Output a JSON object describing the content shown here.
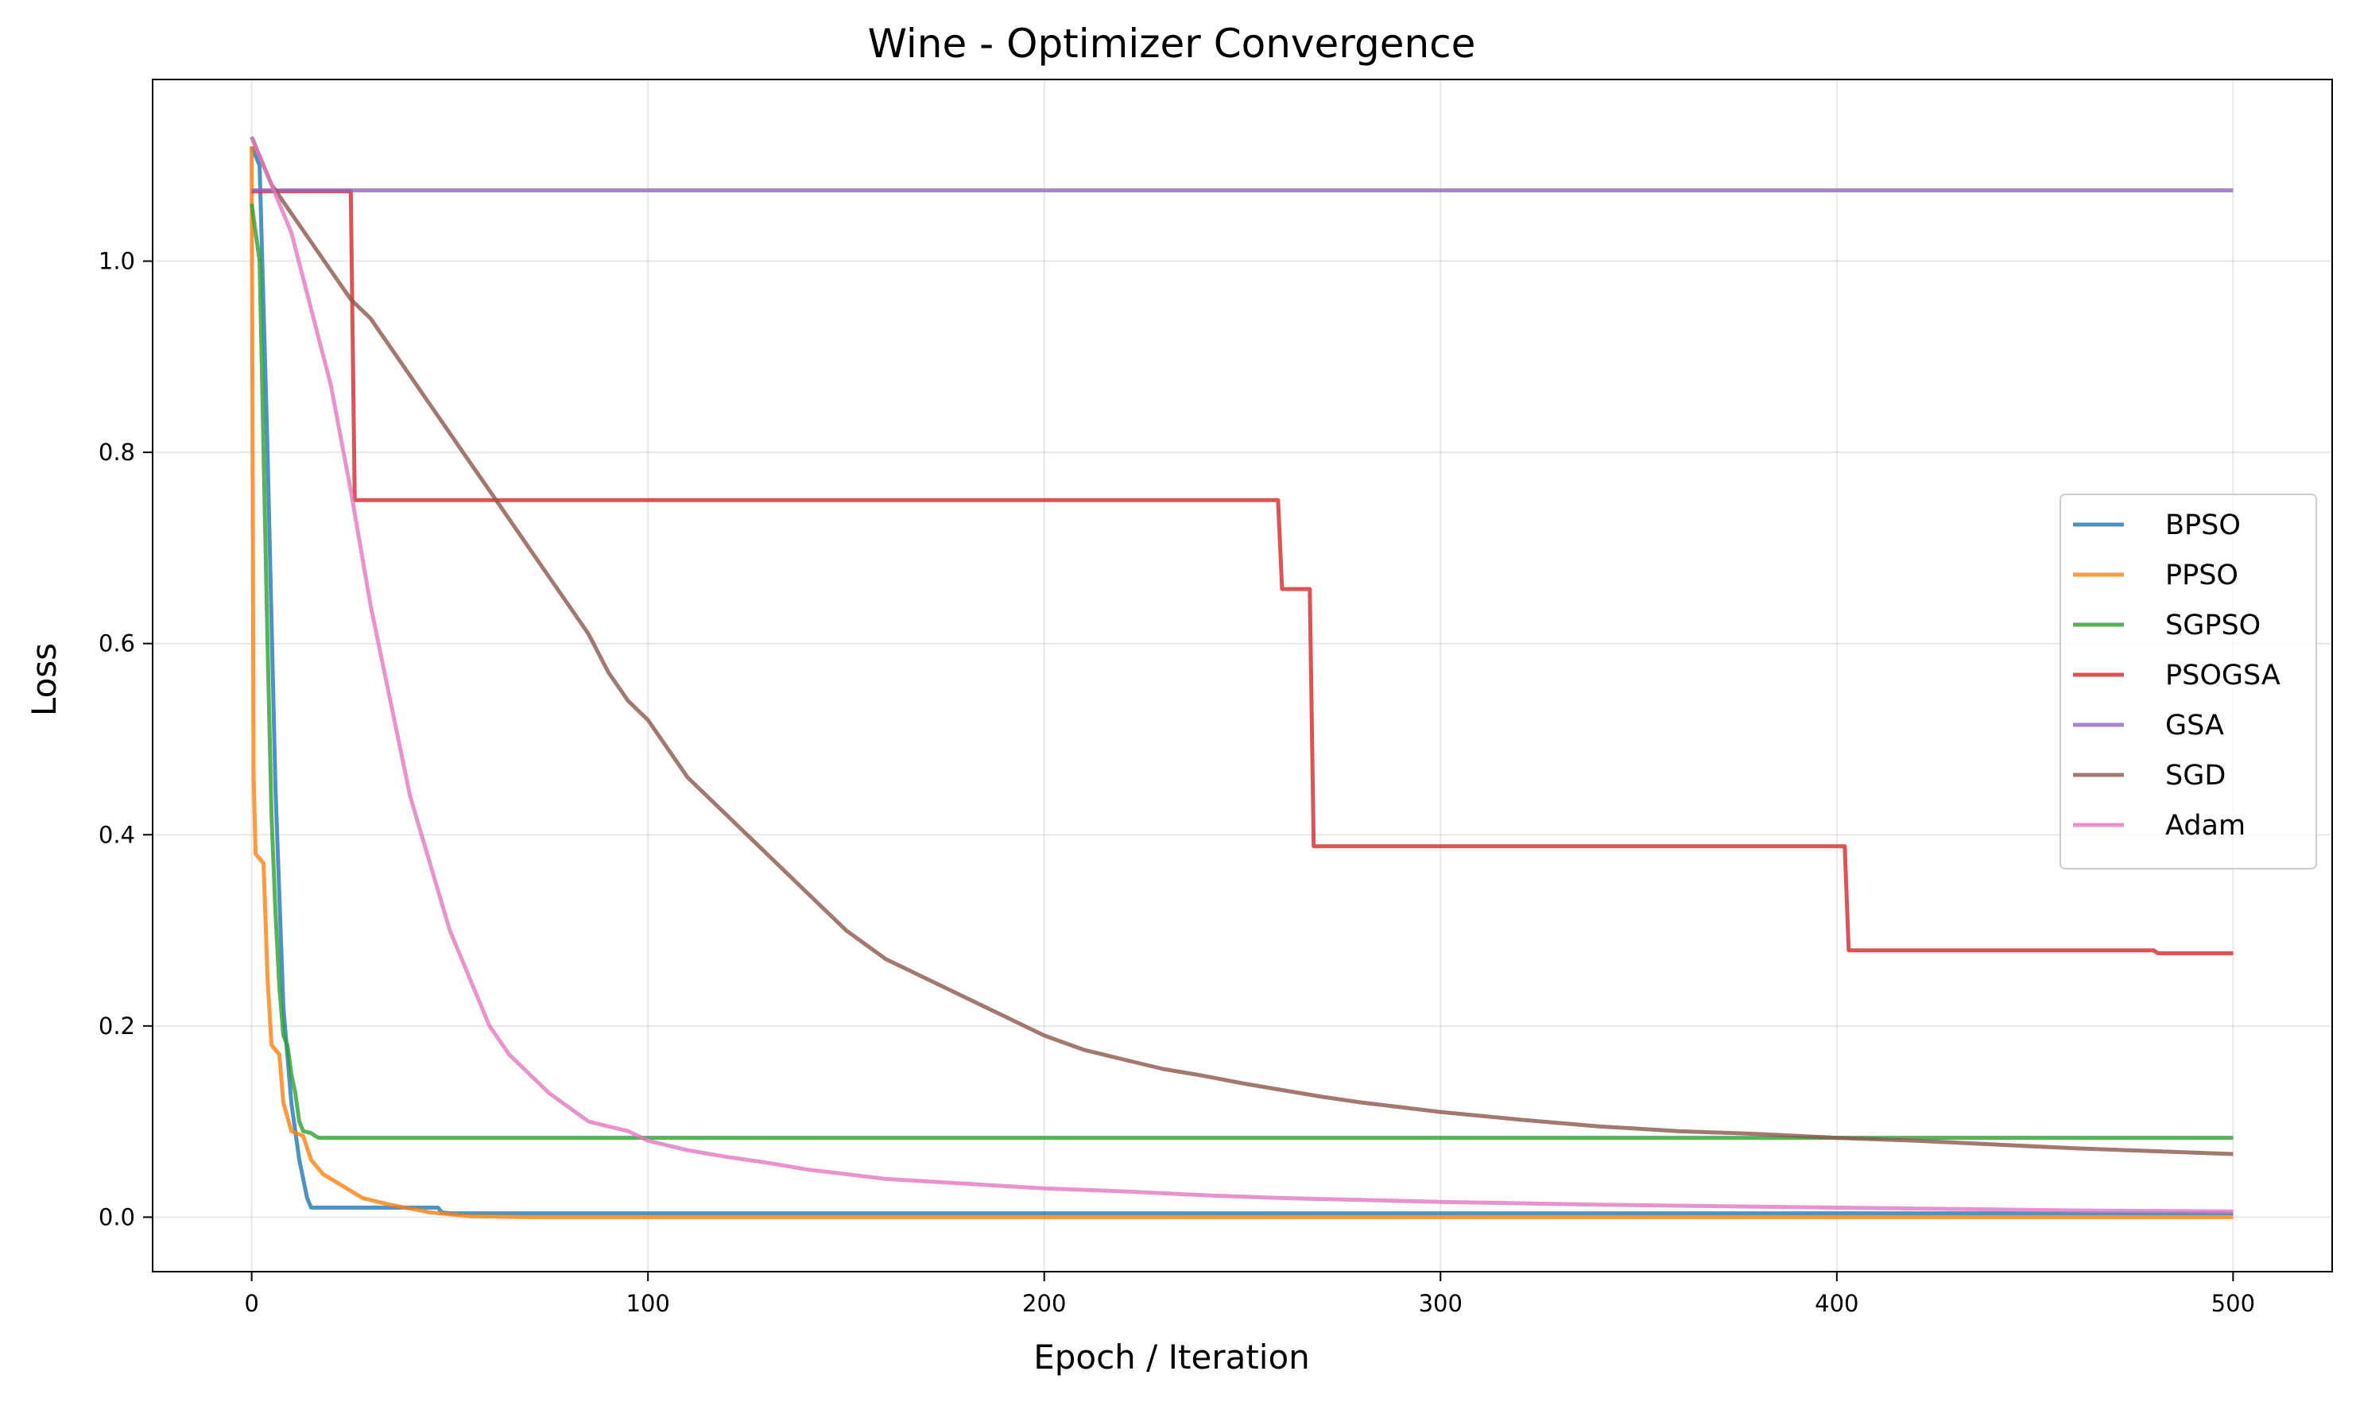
{
  "chart_data": {
    "type": "line",
    "title": "Wine - Optimizer Convergence",
    "xlabel": "Epoch / Iteration",
    "ylabel": "Loss",
    "xlim": [
      -25,
      525
    ],
    "ylim": [
      -0.057,
      1.19
    ],
    "xticks": [
      0,
      100,
      200,
      300,
      400,
      500
    ],
    "yticks": [
      0.0,
      0.2,
      0.4,
      0.6,
      0.8,
      1.0
    ],
    "ytick_labels": [
      "0.0",
      "0.2",
      "0.4",
      "0.6",
      "0.8",
      "1.0"
    ],
    "grid": true,
    "legend_position": "center-right",
    "series": [
      {
        "name": "BPSO",
        "color": "#1f77b4",
        "points": [
          [
            0,
            1.12
          ],
          [
            2,
            1.1
          ],
          [
            4,
            0.8
          ],
          [
            6,
            0.45
          ],
          [
            8,
            0.22
          ],
          [
            10,
            0.12
          ],
          [
            12,
            0.06
          ],
          [
            14,
            0.02
          ],
          [
            15,
            0.01
          ],
          [
            47,
            0.01
          ],
          [
            48,
            0.005
          ],
          [
            50,
            0.004
          ],
          [
            500,
            0.004
          ]
        ]
      },
      {
        "name": "PPSO",
        "color": "#ff7f0e",
        "points": [
          [
            0,
            1.12
          ],
          [
            0.5,
            0.46
          ],
          [
            1,
            0.38
          ],
          [
            3,
            0.37
          ],
          [
            4,
            0.25
          ],
          [
            5,
            0.18
          ],
          [
            7,
            0.17
          ],
          [
            8,
            0.12
          ],
          [
            10,
            0.09
          ],
          [
            13,
            0.085
          ],
          [
            15,
            0.06
          ],
          [
            18,
            0.045
          ],
          [
            22,
            0.035
          ],
          [
            28,
            0.02
          ],
          [
            35,
            0.013
          ],
          [
            45,
            0.005
          ],
          [
            55,
            0.001
          ],
          [
            70,
            0.0
          ],
          [
            500,
            0.0
          ]
        ]
      },
      {
        "name": "SGPSO",
        "color": "#2ca02c",
        "points": [
          [
            0,
            1.06
          ],
          [
            2,
            1.0
          ],
          [
            3,
            0.8
          ],
          [
            4,
            0.6
          ],
          [
            5,
            0.42
          ],
          [
            6,
            0.32
          ],
          [
            7,
            0.24
          ],
          [
            8,
            0.19
          ],
          [
            9,
            0.18
          ],
          [
            10,
            0.15
          ],
          [
            11,
            0.13
          ],
          [
            12,
            0.1
          ],
          [
            13,
            0.09
          ],
          [
            15,
            0.088
          ],
          [
            16,
            0.085
          ],
          [
            17,
            0.083
          ],
          [
            500,
            0.083
          ]
        ]
      },
      {
        "name": "PSOGSA",
        "color": "#d62728",
        "points": [
          [
            0,
            1.073
          ],
          [
            25,
            1.073
          ],
          [
            26,
            0.75
          ],
          [
            259,
            0.75
          ],
          [
            260,
            0.657
          ],
          [
            267,
            0.657
          ],
          [
            268,
            0.388
          ],
          [
            402,
            0.388
          ],
          [
            403,
            0.279
          ],
          [
            480,
            0.279
          ],
          [
            481,
            0.276
          ],
          [
            500,
            0.276
          ]
        ]
      },
      {
        "name": "GSA",
        "color": "#9467bd",
        "points": [
          [
            0,
            1.074
          ],
          [
            500,
            1.074
          ]
        ]
      },
      {
        "name": "SGD",
        "color": "#8c564b",
        "points": [
          [
            0,
            1.13
          ],
          [
            5,
            1.08
          ],
          [
            10,
            1.05
          ],
          [
            15,
            1.02
          ],
          [
            20,
            0.99
          ],
          [
            25,
            0.96
          ],
          [
            30,
            0.94
          ],
          [
            35,
            0.91
          ],
          [
            40,
            0.88
          ],
          [
            45,
            0.85
          ],
          [
            50,
            0.82
          ],
          [
            55,
            0.79
          ],
          [
            60,
            0.76
          ],
          [
            65,
            0.73
          ],
          [
            70,
            0.7
          ],
          [
            75,
            0.67
          ],
          [
            80,
            0.64
          ],
          [
            85,
            0.61
          ],
          [
            90,
            0.57
          ],
          [
            95,
            0.54
          ],
          [
            100,
            0.52
          ],
          [
            110,
            0.46
          ],
          [
            120,
            0.42
          ],
          [
            130,
            0.38
          ],
          [
            140,
            0.34
          ],
          [
            150,
            0.3
          ],
          [
            160,
            0.27
          ],
          [
            170,
            0.25
          ],
          [
            180,
            0.23
          ],
          [
            190,
            0.21
          ],
          [
            200,
            0.19
          ],
          [
            210,
            0.175
          ],
          [
            220,
            0.165
          ],
          [
            230,
            0.155
          ],
          [
            240,
            0.148
          ],
          [
            250,
            0.14
          ],
          [
            260,
            0.133
          ],
          [
            270,
            0.126
          ],
          [
            280,
            0.12
          ],
          [
            290,
            0.115
          ],
          [
            300,
            0.11
          ],
          [
            320,
            0.102
          ],
          [
            340,
            0.095
          ],
          [
            360,
            0.09
          ],
          [
            380,
            0.087
          ],
          [
            400,
            0.083
          ],
          [
            420,
            0.08
          ],
          [
            440,
            0.076
          ],
          [
            460,
            0.072
          ],
          [
            480,
            0.069
          ],
          [
            500,
            0.066
          ]
        ]
      },
      {
        "name": "Adam",
        "color": "#e377c2",
        "points": [
          [
            0,
            1.13
          ],
          [
            3,
            1.1
          ],
          [
            6,
            1.07
          ],
          [
            10,
            1.03
          ],
          [
            15,
            0.95
          ],
          [
            20,
            0.87
          ],
          [
            25,
            0.76
          ],
          [
            30,
            0.64
          ],
          [
            35,
            0.54
          ],
          [
            40,
            0.44
          ],
          [
            45,
            0.37
          ],
          [
            50,
            0.3
          ],
          [
            55,
            0.25
          ],
          [
            60,
            0.2
          ],
          [
            65,
            0.17
          ],
          [
            70,
            0.15
          ],
          [
            75,
            0.13
          ],
          [
            80,
            0.115
          ],
          [
            85,
            0.1
          ],
          [
            90,
            0.095
          ],
          [
            95,
            0.09
          ],
          [
            100,
            0.08
          ],
          [
            110,
            0.07
          ],
          [
            120,
            0.063
          ],
          [
            130,
            0.057
          ],
          [
            140,
            0.05
          ],
          [
            150,
            0.045
          ],
          [
            160,
            0.04
          ],
          [
            180,
            0.035
          ],
          [
            200,
            0.03
          ],
          [
            220,
            0.027
          ],
          [
            240,
            0.023
          ],
          [
            260,
            0.02
          ],
          [
            280,
            0.018
          ],
          [
            300,
            0.016
          ],
          [
            340,
            0.013
          ],
          [
            380,
            0.011
          ],
          [
            420,
            0.009
          ],
          [
            460,
            0.007
          ],
          [
            500,
            0.006
          ]
        ]
      }
    ]
  }
}
